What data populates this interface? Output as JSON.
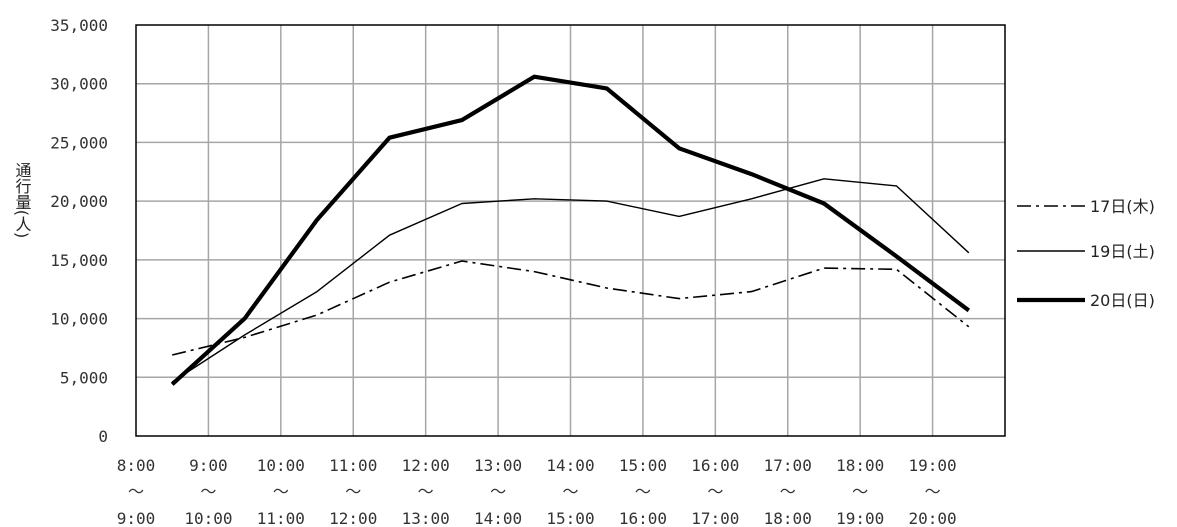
{
  "chart_data": {
    "type": "line",
    "categories": [
      [
        "8:00",
        "〜",
        "9:00"
      ],
      [
        "9:00",
        "〜",
        "10:00"
      ],
      [
        "10:00",
        "〜",
        "11:00"
      ],
      [
        "11:00",
        "〜",
        "12:00"
      ],
      [
        "12:00",
        "〜",
        "13:00"
      ],
      [
        "13:00",
        "〜",
        "14:00"
      ],
      [
        "14:00",
        "〜",
        "15:00"
      ],
      [
        "15:00",
        "〜",
        "16:00"
      ],
      [
        "16:00",
        "〜",
        "17:00"
      ],
      [
        "17:00",
        "〜",
        "18:00"
      ],
      [
        "18:00",
        "〜",
        "19:00"
      ],
      [
        "19:00",
        "〜",
        "20:00"
      ]
    ],
    "ylabel": "通行量(人)",
    "ylim": [
      0,
      35000
    ],
    "yticks": [
      "0",
      "5,000",
      "10,000",
      "15,000",
      "20,000",
      "25,000",
      "30,000",
      "35,000"
    ],
    "grid": true,
    "legend_position": "right",
    "series": [
      {
        "name": "17日(木)",
        "style": "dash-dot",
        "color": "#000000",
        "values": [
          6900,
          8400,
          10300,
          13100,
          14900,
          14000,
          12600,
          11700,
          12300,
          14300,
          14200,
          9300
        ]
      },
      {
        "name": "19日(土)",
        "style": "thin",
        "color": "#000000",
        "values": [
          4600,
          8600,
          12300,
          17100,
          19800,
          20200,
          20000,
          18700,
          20200,
          21900,
          21300,
          15600
        ]
      },
      {
        "name": "20日(日)",
        "style": "bold",
        "color": "#000000",
        "values": [
          4400,
          10000,
          18400,
          25400,
          26900,
          30600,
          29600,
          24500,
          22300,
          19800,
          15300,
          10700
        ]
      }
    ]
  }
}
